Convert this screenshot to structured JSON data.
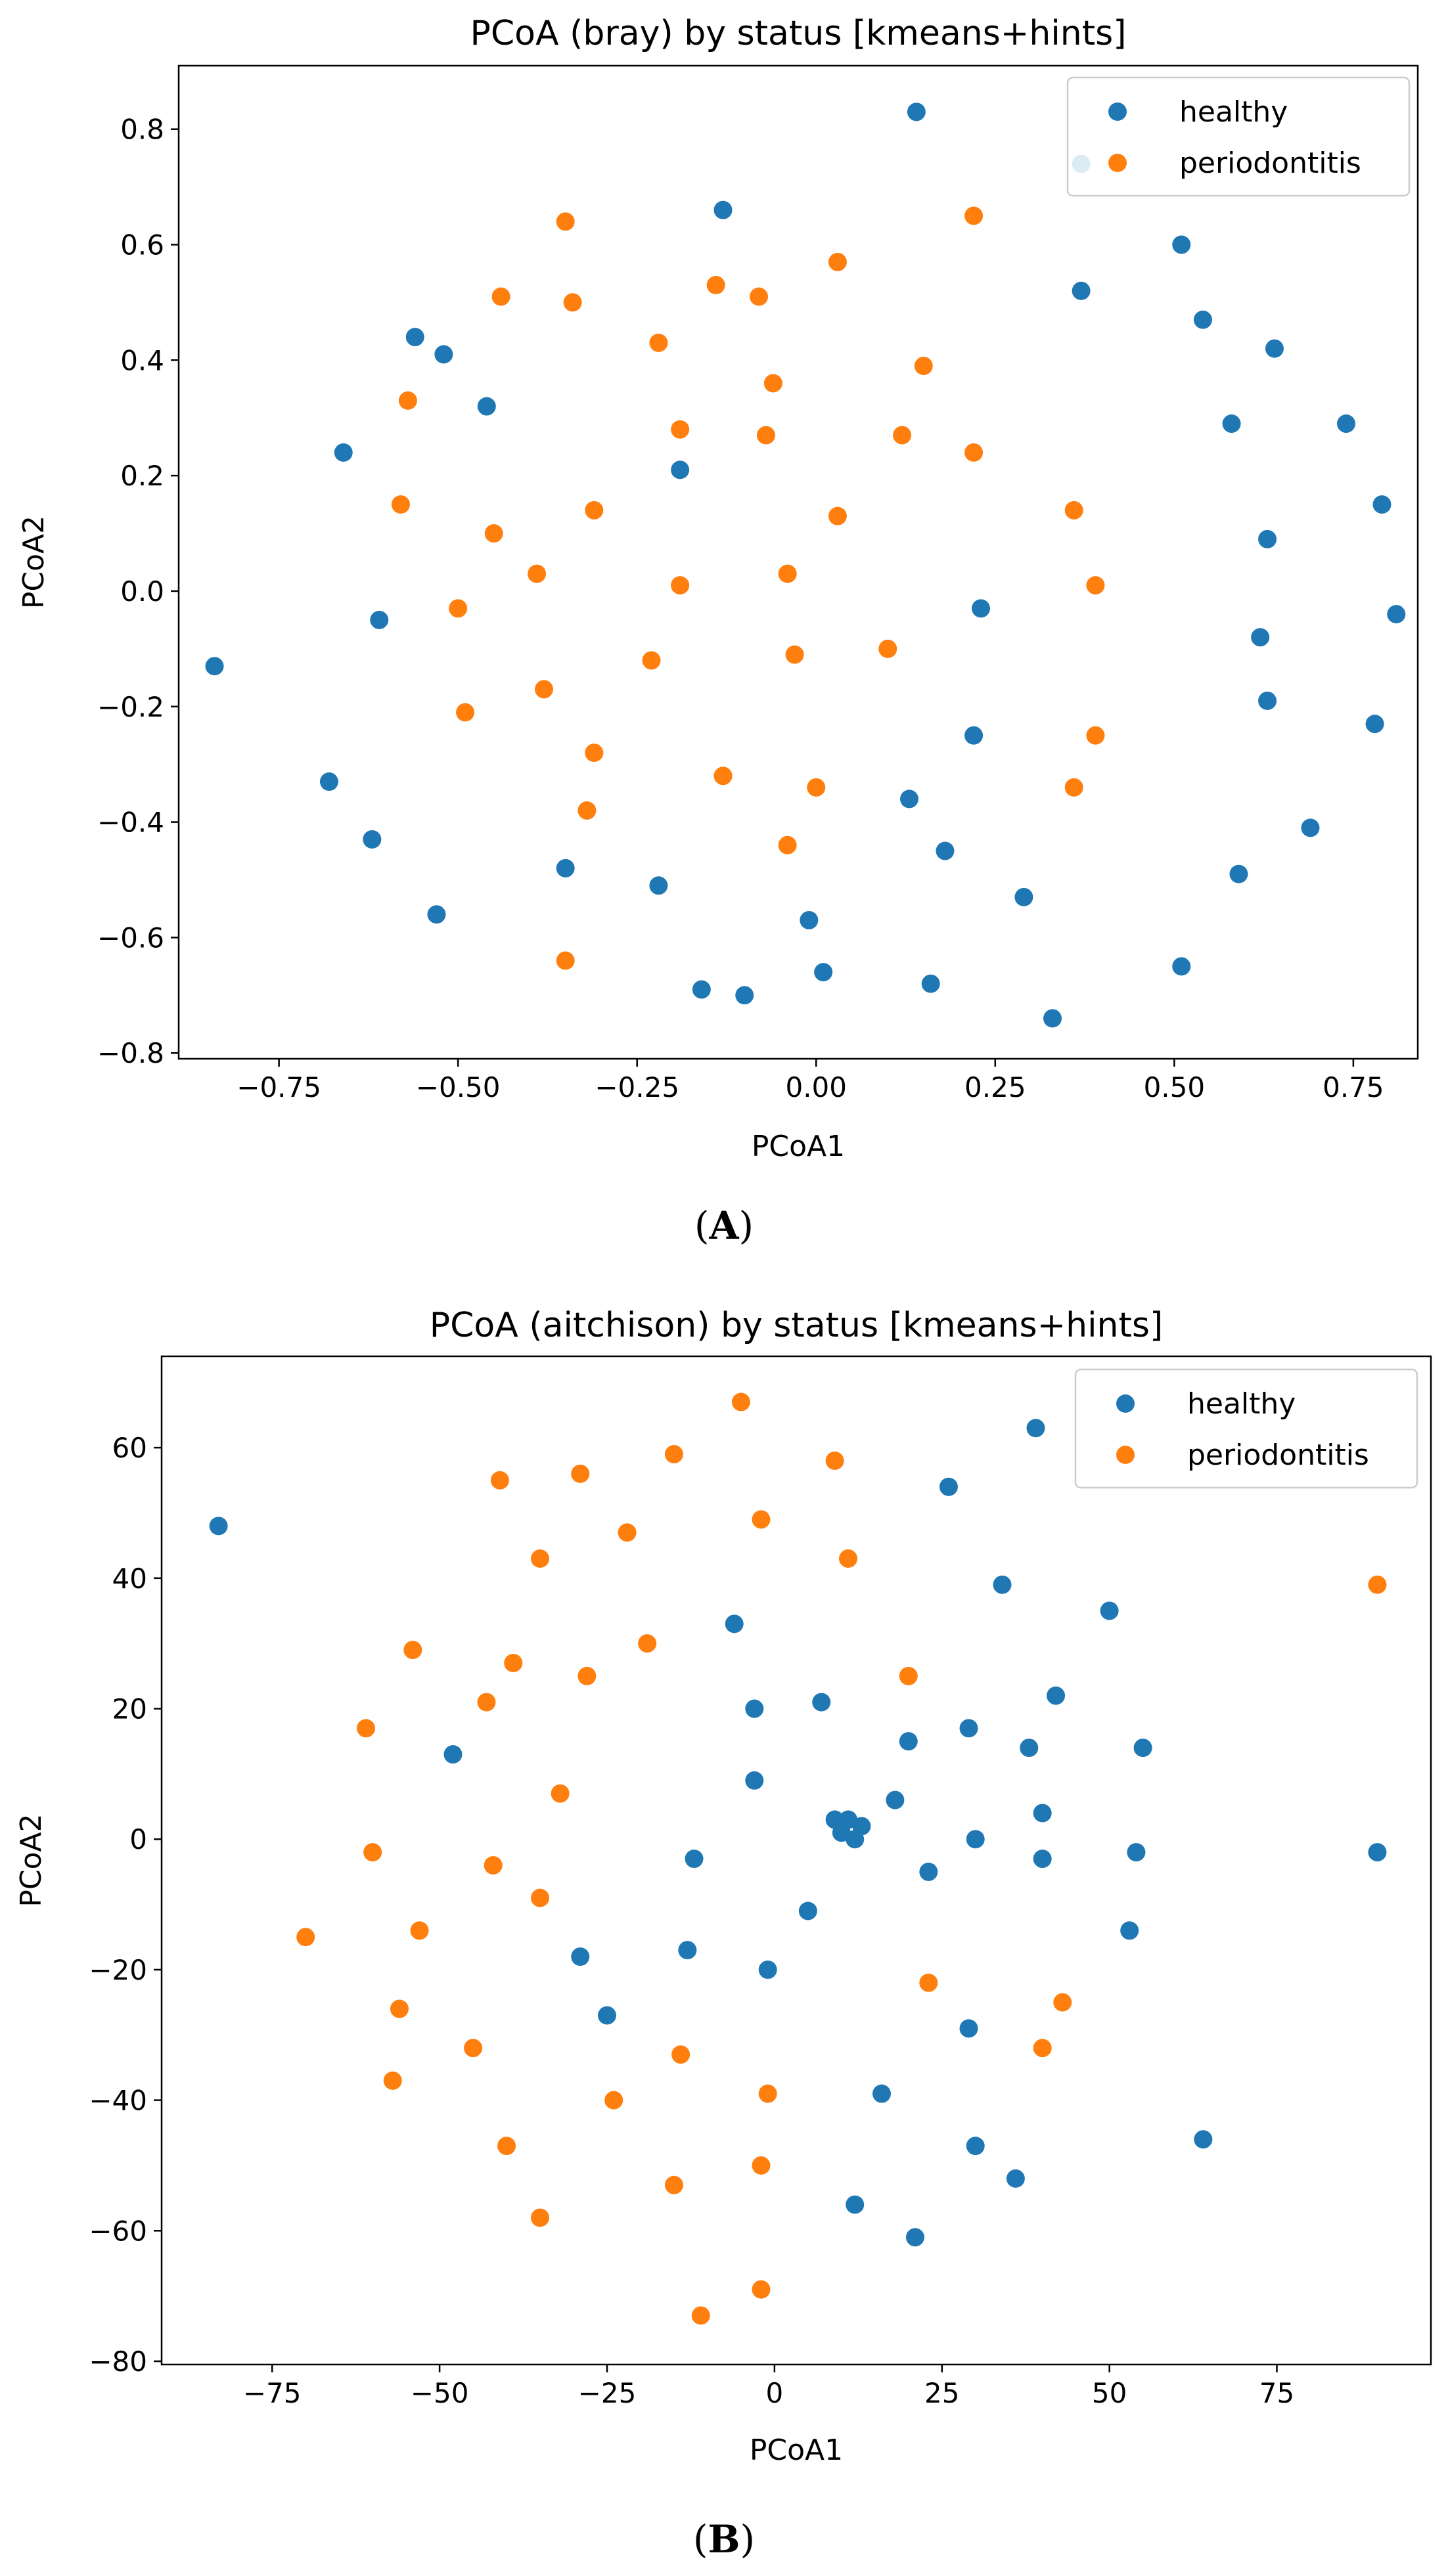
{
  "chart_data": [
    {
      "type": "scatter",
      "title": "PCoA (bray) by status [kmeans+hints]",
      "xlabel": "PCoA1",
      "ylabel": "PCoA2",
      "xlim": [
        -0.89,
        0.84
      ],
      "ylim": [
        -0.81,
        0.91
      ],
      "xticks": [
        "−0.75",
        "−0.50",
        "−0.25",
        "0.00",
        "0.25",
        "0.50",
        "0.75"
      ],
      "xtick_values": [
        -0.75,
        -0.5,
        -0.25,
        0.0,
        0.25,
        0.5,
        0.75
      ],
      "yticks": [
        "−0.8",
        "−0.6",
        "−0.4",
        "−0.2",
        "0.0",
        "0.2",
        "0.4",
        "0.6",
        "0.8"
      ],
      "ytick_values": [
        -0.8,
        -0.6,
        -0.4,
        -0.2,
        0.0,
        0.2,
        0.4,
        0.6,
        0.8
      ],
      "grid": false,
      "legend": "top-right",
      "series": [
        {
          "name": "healthy",
          "color": "#1f77b4",
          "points": [
            [
              0.14,
              0.83
            ],
            [
              0.37,
              0.74
            ],
            [
              -0.13,
              0.66
            ],
            [
              0.51,
              0.6
            ],
            [
              0.37,
              0.52
            ],
            [
              0.54,
              0.47
            ],
            [
              -0.56,
              0.44
            ],
            [
              -0.52,
              0.41
            ],
            [
              0.64,
              0.42
            ],
            [
              -0.46,
              0.32
            ],
            [
              -0.66,
              0.24
            ],
            [
              0.58,
              0.29
            ],
            [
              0.74,
              0.29
            ],
            [
              -0.19,
              0.21
            ],
            [
              0.79,
              0.15
            ],
            [
              0.63,
              0.09
            ],
            [
              -0.61,
              -0.05
            ],
            [
              0.23,
              -0.03
            ],
            [
              0.81,
              -0.04
            ],
            [
              0.62,
              -0.08
            ],
            [
              -0.84,
              -0.13
            ],
            [
              0.63,
              -0.19
            ],
            [
              0.78,
              -0.23
            ],
            [
              0.22,
              -0.25
            ],
            [
              -0.68,
              -0.33
            ],
            [
              0.13,
              -0.36
            ],
            [
              -0.62,
              -0.43
            ],
            [
              0.69,
              -0.41
            ],
            [
              -0.35,
              -0.48
            ],
            [
              0.18,
              -0.45
            ],
            [
              0.59,
              -0.49
            ],
            [
              -0.22,
              -0.51
            ],
            [
              0.29,
              -0.53
            ],
            [
              -0.53,
              -0.56
            ],
            [
              -0.01,
              -0.57
            ],
            [
              0.51,
              -0.65
            ],
            [
              0.01,
              -0.66
            ],
            [
              -0.16,
              -0.69
            ],
            [
              0.16,
              -0.68
            ],
            [
              -0.1,
              -0.7
            ],
            [
              0.33,
              -0.74
            ]
          ]
        },
        {
          "name": "periodontitis",
          "color": "#ff7f0e",
          "points": [
            [
              0.22,
              0.65
            ],
            [
              -0.35,
              0.64
            ],
            [
              0.03,
              0.57
            ],
            [
              -0.14,
              0.53
            ],
            [
              -0.44,
              0.51
            ],
            [
              -0.34,
              0.5
            ],
            [
              -0.08,
              0.51
            ],
            [
              -0.22,
              0.43
            ],
            [
              0.15,
              0.39
            ],
            [
              -0.06,
              0.36
            ],
            [
              -0.57,
              0.33
            ],
            [
              -0.19,
              0.28
            ],
            [
              -0.07,
              0.27
            ],
            [
              0.12,
              0.27
            ],
            [
              0.22,
              0.24
            ],
            [
              -0.58,
              0.15
            ],
            [
              -0.31,
              0.14
            ],
            [
              0.03,
              0.13
            ],
            [
              0.36,
              0.14
            ],
            [
              -0.45,
              0.1
            ],
            [
              -0.39,
              0.03
            ],
            [
              -0.04,
              0.03
            ],
            [
              -0.19,
              0.01
            ],
            [
              0.39,
              0.01
            ],
            [
              -0.5,
              -0.03
            ],
            [
              0.1,
              -0.1
            ],
            [
              -0.03,
              -0.11
            ],
            [
              -0.23,
              -0.12
            ],
            [
              -0.38,
              -0.17
            ],
            [
              -0.49,
              -0.21
            ],
            [
              0.39,
              -0.25
            ],
            [
              -0.31,
              -0.28
            ],
            [
              -0.13,
              -0.32
            ],
            [
              0.36,
              -0.34
            ],
            [
              0.0,
              -0.34
            ],
            [
              -0.32,
              -0.38
            ],
            [
              -0.04,
              -0.44
            ],
            [
              -0.35,
              -0.64
            ]
          ]
        }
      ]
    },
    {
      "type": "scatter",
      "title": "PCoA (aitchison) by status [kmeans+hints]",
      "xlabel": "PCoA1",
      "ylabel": "PCoA2",
      "xlim": [
        -91.5,
        98
      ],
      "ylim": [
        -80.5,
        74
      ],
      "xticks": [
        "−75",
        "−50",
        "−25",
        "0",
        "25",
        "50",
        "75"
      ],
      "xtick_values": [
        -75,
        -50,
        -25,
        0,
        25,
        50,
        75
      ],
      "yticks": [
        "−80",
        "−60",
        "−40",
        "−20",
        "0",
        "20",
        "40",
        "60"
      ],
      "ytick_values": [
        -80,
        -60,
        -40,
        -20,
        0,
        20,
        40,
        60
      ],
      "grid": false,
      "legend": "top-right",
      "series": [
        {
          "name": "healthy",
          "color": "#1f77b4",
          "points": [
            [
              -83,
              48
            ],
            [
              39,
              63
            ],
            [
              26,
              54
            ],
            [
              34,
              39
            ],
            [
              50,
              35
            ],
            [
              -6,
              33
            ],
            [
              42,
              22
            ],
            [
              -3,
              20
            ],
            [
              7,
              21
            ],
            [
              20,
              15
            ],
            [
              29,
              17
            ],
            [
              38,
              14
            ],
            [
              55,
              14
            ],
            [
              -48,
              13
            ],
            [
              -3,
              9
            ],
            [
              18,
              6
            ],
            [
              40,
              4
            ],
            [
              9,
              3
            ],
            [
              11,
              3
            ],
            [
              13,
              2
            ],
            [
              10,
              1
            ],
            [
              12,
              0
            ],
            [
              30,
              0
            ],
            [
              54,
              -2
            ],
            [
              90,
              -2
            ],
            [
              -12,
              -3
            ],
            [
              40,
              -3
            ],
            [
              23,
              -5
            ],
            [
              5,
              -11
            ],
            [
              53,
              -14
            ],
            [
              -13,
              -17
            ],
            [
              -29,
              -18
            ],
            [
              -1,
              -20
            ],
            [
              -25,
              -27
            ],
            [
              29,
              -29
            ],
            [
              16,
              -39
            ],
            [
              64,
              -46
            ],
            [
              30,
              -47
            ],
            [
              36,
              -52
            ],
            [
              12,
              -56
            ],
            [
              21,
              -61
            ]
          ]
        },
        {
          "name": "periodontitis",
          "color": "#ff7f0e",
          "points": [
            [
              -5,
              67
            ],
            [
              -15,
              59
            ],
            [
              9,
              58
            ],
            [
              -41,
              55
            ],
            [
              -29,
              56
            ],
            [
              -2,
              49
            ],
            [
              -22,
              47
            ],
            [
              -35,
              43
            ],
            [
              11,
              43
            ],
            [
              90,
              39
            ],
            [
              -54,
              29
            ],
            [
              -19,
              30
            ],
            [
              -39,
              27
            ],
            [
              -43,
              21
            ],
            [
              -28,
              25
            ],
            [
              20,
              25
            ],
            [
              -61,
              17
            ],
            [
              -32,
              7
            ],
            [
              -60,
              -2
            ],
            [
              -42,
              -4
            ],
            [
              -35,
              -9
            ],
            [
              -53,
              -14
            ],
            [
              -70,
              -15
            ],
            [
              23,
              -22
            ],
            [
              43,
              -25
            ],
            [
              -56,
              -26
            ],
            [
              -45,
              -32
            ],
            [
              40,
              -32
            ],
            [
              -14,
              -33
            ],
            [
              -24,
              -40
            ],
            [
              -1,
              -39
            ],
            [
              -57,
              -37
            ],
            [
              -40,
              -47
            ],
            [
              -2,
              -50
            ],
            [
              -15,
              -53
            ],
            [
              -35,
              -58
            ],
            [
              -2,
              -69
            ],
            [
              -11,
              -73
            ]
          ]
        }
      ]
    }
  ],
  "panel_labels": [
    "A",
    "B"
  ]
}
